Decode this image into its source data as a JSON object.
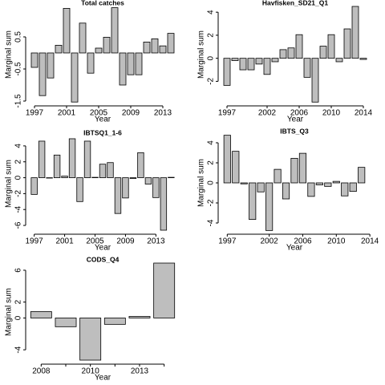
{
  "chart_data": [
    {
      "type": "bar",
      "title": "Total catches",
      "xlabel": "Year",
      "ylabel": "Marginal sum",
      "color": "#bebebe",
      "x": [
        1997,
        1998,
        1999,
        2000,
        2001,
        2002,
        2003,
        2004,
        2005,
        2006,
        2007,
        2008,
        2009,
        2010,
        2011,
        2012,
        2013,
        2014
      ],
      "values": [
        -0.45,
        -1.33,
        -0.78,
        0.24,
        1.39,
        -1.53,
        0.93,
        -0.63,
        0.15,
        0.49,
        1.41,
        -1.0,
        -0.68,
        -0.68,
        0.34,
        0.44,
        0.22,
        0.61
      ],
      "xlim": [
        1996.3,
        2014.7
      ],
      "xticks": [
        1997,
        2001,
        2005,
        2009,
        2013
      ],
      "ylim": [
        -1.55,
        1.45
      ],
      "yticks": [
        -1.5,
        -0.5,
        0.5
      ]
    },
    {
      "type": "bar",
      "title": "Havfisken_SD21_Q1",
      "xlabel": "Year",
      "ylabel": "Marginal sum",
      "color": "#bebebe",
      "x": [
        1997,
        1998,
        1999,
        2000,
        2001,
        2002,
        2003,
        2004,
        2005,
        2006,
        2007,
        2008,
        2009,
        2010,
        2011,
        2012,
        2013,
        2014
      ],
      "values": [
        -2.35,
        -0.2,
        -1.0,
        -1.0,
        -0.5,
        -1.4,
        -0.3,
        0.75,
        0.9,
        2.05,
        -1.65,
        -3.8,
        1.05,
        2.05,
        -0.3,
        2.55,
        4.5,
        -0.1
      ],
      "xlim": [
        1996.3,
        2014.7
      ],
      "xticks": [
        1997,
        2002,
        2006,
        2010,
        2014
      ],
      "ylim": [
        -3.85,
        4.5
      ],
      "yticks": [
        -2,
        0,
        2,
        4
      ]
    },
    {
      "type": "bar",
      "title": "IBTSQ1_1-6",
      "xlabel": "Year",
      "ylabel": "Marginal sum",
      "color": "#bebebe",
      "x": [
        1997,
        1998,
        1999,
        2000,
        2001,
        2002,
        2003,
        2004,
        2005,
        2006,
        2007,
        2008,
        2009,
        2010,
        2011,
        2012,
        2013,
        2014,
        2015
      ],
      "values": [
        -2.1,
        4.6,
        -0.05,
        2.85,
        0.2,
        4.9,
        -3.0,
        4.6,
        0.05,
        1.7,
        1.9,
        -4.5,
        -2.55,
        -0.1,
        3.15,
        -0.8,
        -2.5,
        -6.6,
        0.05
      ],
      "xlim": [
        1996.3,
        2015.7
      ],
      "xticks": [
        1997,
        2001,
        2005,
        2009,
        2013
      ],
      "ylim": [
        -6.7,
        5.2
      ],
      "yticks": [
        -6,
        -4,
        -2,
        0,
        2,
        4
      ]
    },
    {
      "type": "bar",
      "title": "IBTS_Q3",
      "xlabel": "Year",
      "ylabel": "Marginal sum",
      "color": "#bebebe",
      "x": [
        1997,
        1998,
        1999,
        2000,
        2001,
        2002,
        2003,
        2004,
        2005,
        2006,
        2007,
        2008,
        2009,
        2010,
        2011,
        2012,
        2013
      ],
      "values": [
        4.75,
        3.15,
        -0.1,
        -3.65,
        -0.9,
        -4.75,
        1.35,
        -1.6,
        2.45,
        2.95,
        -1.35,
        -0.2,
        -0.35,
        0.15,
        -1.3,
        -0.85,
        1.55
      ],
      "xlim": [
        1996.3,
        2013.7
      ],
      "xticks": [
        1997,
        2002,
        2006,
        2010,
        2014
      ],
      "ylim": [
        -4.8,
        4.8
      ],
      "yticks": [
        -4,
        -2,
        0,
        2,
        4
      ]
    },
    {
      "type": "bar",
      "title": "CODS_Q4",
      "xlabel": "Year",
      "ylabel": "Marginal sum",
      "color": "#bebebe",
      "categories": [
        "2008",
        null,
        "2010",
        null,
        "2013",
        null
      ],
      "values": [
        0.8,
        -1.1,
        -5.3,
        -0.8,
        0.2,
        6.9
      ],
      "ylim": [
        -5.4,
        6.9
      ],
      "yticks": [
        -4,
        0,
        2,
        6
      ]
    }
  ]
}
